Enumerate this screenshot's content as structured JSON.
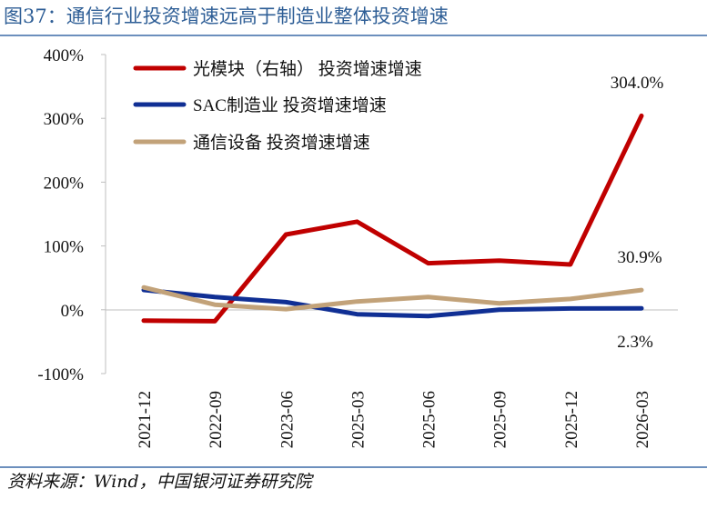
{
  "header": {
    "title": "图37：通信行业投资增速远高于制造业整体投资增速"
  },
  "footer": {
    "source": "资料来源：Wind，中国银河证券研究院"
  },
  "chart_data": {
    "type": "line",
    "categories": [
      "2021-12",
      "2022-09",
      "2023-06",
      "2025-03",
      "2025-06",
      "2025-09",
      "2025-12",
      "2026-03"
    ],
    "y_tick_labels": [
      "400%",
      "300%",
      "200%",
      "100%",
      "0%",
      "-100%"
    ],
    "ylim": [
      -100,
      400
    ],
    "grid": false,
    "legend_position": "top-left",
    "series": [
      {
        "name": "光模块（右轴） 投资增速增速",
        "color": "#c00000",
        "values": [
          -17,
          -18,
          118,
          138,
          73,
          77,
          71,
          304
        ]
      },
      {
        "name": "SAC制造业 投资增速增速",
        "color": "#102f94",
        "values": [
          31,
          20,
          12,
          -7,
          -10,
          0,
          2,
          2.3
        ]
      },
      {
        "name": "通信设备 投资增速增速",
        "color": "#c2a279",
        "values": [
          35,
          8,
          1,
          13,
          20,
          10,
          17,
          30.9
        ]
      }
    ],
    "annotations": [
      "304.0%",
      "30.9%",
      "2.3%"
    ]
  }
}
